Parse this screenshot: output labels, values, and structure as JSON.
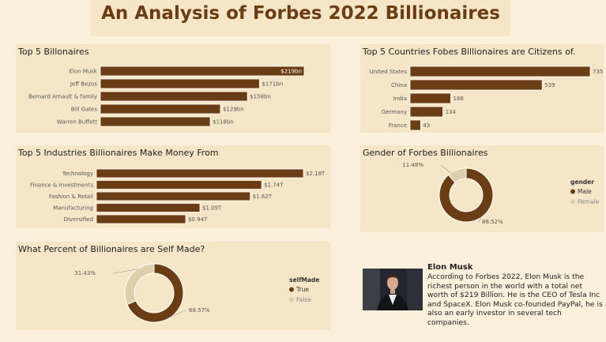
{
  "page": {
    "title": "An Analysis of Forbes 2022 Billionaires"
  },
  "colors": {
    "bar": "#6b3d15",
    "bar_edge": "#ffffff",
    "panel": "#f5e6c8",
    "background": "#fbf0dc",
    "donut_light": "#ddcfae"
  },
  "chart_data": [
    {
      "id": "billionaires",
      "type": "bar",
      "orientation": "horizontal",
      "title": "Top 5 Billonaires",
      "categories": [
        "Elon Musk",
        "Jeff Bezos",
        "Bernard Arnault & family",
        "Bill Gates",
        "Warren Buffett"
      ],
      "values": [
        219,
        171,
        158,
        129,
        118
      ],
      "data_labels": [
        "$219bn",
        "$171bn",
        "$158bn",
        "$129bn",
        "$118bn"
      ],
      "xlim": [
        0,
        219
      ],
      "highlighted": "Elon Musk"
    },
    {
      "id": "countries",
      "type": "bar",
      "orientation": "horizontal",
      "title": "Top 5 Countries Fobes Billionaires are Citizens of.",
      "categories": [
        "United States",
        "China",
        "India",
        "Germany",
        "France"
      ],
      "values": [
        735,
        539,
        166,
        134,
        43
      ],
      "data_labels": [
        "735",
        "539",
        "166",
        "134",
        "43"
      ],
      "xlim": [
        0,
        735
      ]
    },
    {
      "id": "industries",
      "type": "bar",
      "orientation": "horizontal",
      "title": "Top 5 Industries Billionaires Make Money From",
      "categories": [
        "Technology",
        "Finance & Investments",
        "Fashion & Retail",
        "Manufacturing",
        "Diversified"
      ],
      "values": [
        2.18,
        1.74,
        1.62,
        1.09,
        0.94
      ],
      "data_labels": [
        "$2.18T",
        "$1.74T",
        "$1.62T",
        "$1.09T",
        "$0.94T"
      ],
      "xlim": [
        0,
        2.18
      ]
    },
    {
      "id": "gender",
      "type": "pie",
      "donut": true,
      "title": "Gender of Forbes Billionaires",
      "legend_title": "gender",
      "legend_position": "right",
      "slices": [
        {
          "name": "Male",
          "value": 88.52,
          "label": "88.52%",
          "color": "#6b3d15"
        },
        {
          "name": "Female",
          "value": 11.48,
          "label": "11.48%",
          "color": "#ddcfae"
        }
      ]
    },
    {
      "id": "selfmade",
      "type": "pie",
      "donut": true,
      "title": "What Percent of Billionaires are Self Made?",
      "legend_title": "selfMade",
      "legend_position": "right",
      "slices": [
        {
          "name": "True",
          "value": 68.57,
          "label": "68.57%",
          "color": "#6b3d15"
        },
        {
          "name": "False",
          "value": 31.43,
          "label": "31.43%",
          "color": "#ddcfae"
        }
      ]
    }
  ],
  "bio": {
    "name": "Elon Musk",
    "text": "According to Forbes 2022, Elon Musk is the richest person in the world with a total net worth of $219 Billion. He is the CEO of Tesla Inc and SpaceX. Elon Musk co-founded PayPal, he is also an early investor in several tech companies."
  }
}
